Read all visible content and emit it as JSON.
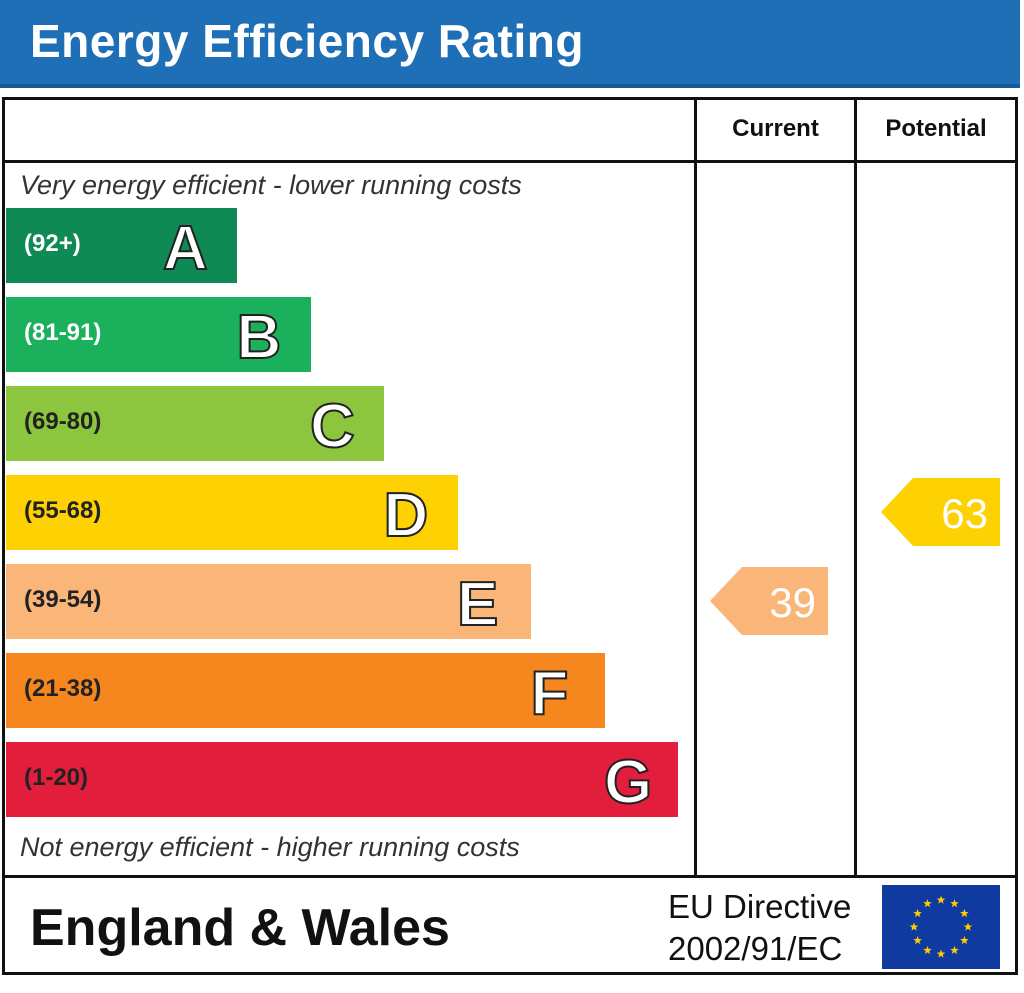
{
  "title": "Energy Efficiency Rating",
  "colors": {
    "title_bar": "#1f6fb7",
    "eu_flag": "#0f3aa0",
    "star": "#ffcc00"
  },
  "columns": {
    "current": "Current",
    "potential": "Potential"
  },
  "notes": {
    "top": "Very energy efficient - lower running costs",
    "bottom": "Not energy efficient - higher running costs"
  },
  "chart_data": {
    "type": "bar",
    "categories": [
      "A",
      "B",
      "C",
      "D",
      "E",
      "F",
      "G"
    ],
    "bands": [
      {
        "letter": "A",
        "range": "(92+)",
        "color": "#0f8a55",
        "range_color": "#ffffff",
        "min": 92,
        "max": 100
      },
      {
        "letter": "B",
        "range": "(81-91)",
        "color": "#1bb05c",
        "range_color": "#ffffff",
        "min": 81,
        "max": 91
      },
      {
        "letter": "C",
        "range": "(69-80)",
        "color": "#8cc63e",
        "range_color": "#222222",
        "min": 69,
        "max": 80
      },
      {
        "letter": "D",
        "range": "(55-68)",
        "color": "#fdd102",
        "range_color": "#222222",
        "min": 55,
        "max": 68
      },
      {
        "letter": "E",
        "range": "(39-54)",
        "color": "#f9b678",
        "range_color": "#222222",
        "min": 39,
        "max": 54
      },
      {
        "letter": "F",
        "range": "(21-38)",
        "color": "#f6871f",
        "range_color": "#222222",
        "min": 21,
        "max": 38
      },
      {
        "letter": "G",
        "range": "(1-20)",
        "color": "#e31d3c",
        "range_color": "#222222",
        "min": 1,
        "max": 20
      }
    ],
    "current": {
      "value": 39,
      "band": "E",
      "color": "#f9b678"
    },
    "potential": {
      "value": 63,
      "band": "D",
      "color": "#fdd102"
    }
  },
  "footer": {
    "region": "England & Wales",
    "directive_line1": "EU Directive",
    "directive_line2": "2002/91/EC"
  }
}
